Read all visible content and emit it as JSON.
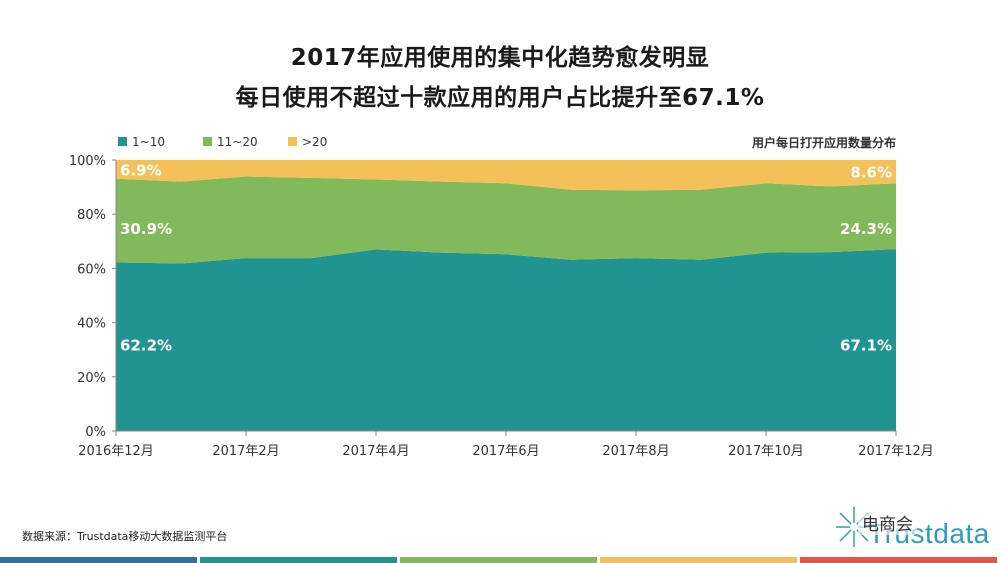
{
  "header": {
    "title_line1": "2017年应用使用的集中化趋势愈发明显",
    "title_line2": "每日使用不超过十款应用的用户占比提升至67.1%"
  },
  "chart_data": {
    "type": "area",
    "stacked": true,
    "title": "用户每日打开应用数量分布",
    "x": [
      "2016年12月",
      "",
      "2017年2月",
      "",
      "2017年4月",
      "",
      "2017年6月",
      "",
      "2017年8月",
      "",
      "2017年10月",
      "",
      "2017年12月"
    ],
    "tick_labels": [
      "2016年12月",
      "2017年2月",
      "2017年4月",
      "2017年6月",
      "2017年8月",
      "2017年10月",
      "2017年12月"
    ],
    "tick_indices": [
      0,
      2,
      4,
      6,
      8,
      10,
      12
    ],
    "y_ticks": [
      "0%",
      "20%",
      "40%",
      "60%",
      "80%",
      "100%"
    ],
    "ylim": [
      0,
      100
    ],
    "series": [
      {
        "name": "1~10",
        "color": "#1f9490",
        "values": [
          62.2,
          61.8,
          63.8,
          63.8,
          67.0,
          65.8,
          65.2,
          63.2,
          63.8,
          63.2,
          65.8,
          66.0,
          67.1
        ]
      },
      {
        "name": "11~20",
        "color": "#82b95a",
        "values": [
          30.9,
          30.2,
          30.1,
          29.6,
          25.8,
          26.2,
          26.2,
          25.8,
          25.0,
          25.8,
          25.6,
          24.2,
          24.3
        ]
      },
      {
        "name": ">20",
        "color": "#f4c05a",
        "values": [
          6.9,
          8.0,
          6.1,
          6.6,
          7.2,
          8.0,
          8.6,
          11.0,
          11.2,
          11.0,
          8.6,
          9.8,
          8.6
        ]
      }
    ],
    "data_labels": [
      {
        "text": "62.2%",
        "series": 0,
        "index": 0,
        "y": 32
      },
      {
        "text": "30.9%",
        "series": 1,
        "index": 0,
        "y": 75
      },
      {
        "text": "6.9%",
        "series": 2,
        "index": 0,
        "y": 96.5
      },
      {
        "text": "67.1%",
        "series": 0,
        "index": 12,
        "y": 32
      },
      {
        "text": "24.3%",
        "series": 1,
        "index": 12,
        "y": 75
      },
      {
        "text": "8.6%",
        "series": 2,
        "index": 12,
        "y": 95.7
      }
    ],
    "legend_position": "top-left"
  },
  "footer": {
    "source": "数据来源：Trustdata移动大数据监测平台",
    "brand": "Trustdata",
    "wechat_label": "电商会",
    "bar_colors": [
      "#2e6fa8",
      "#1f9490",
      "#82b95a",
      "#f4c05a",
      "#e6554a"
    ]
  }
}
